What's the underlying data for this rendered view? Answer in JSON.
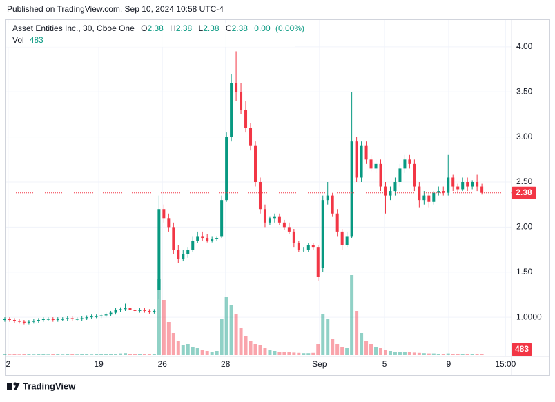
{
  "header": {
    "published": "Published on TradingView.com, Sep 10, 2024 10:58 UTC-4"
  },
  "footer": {
    "brand": "TradingView"
  },
  "chart_data": {
    "type": "candlestick",
    "title": "Asset Entities Inc., 30, Cboe One",
    "ohlc_legend": {
      "labels": {
        "open": "O",
        "high": "H",
        "low": "L",
        "close": "C"
      },
      "open": 2.38,
      "high": 2.38,
      "low": 2.38,
      "close": 2.38,
      "change": {
        "value": 0,
        "label": "0.00"
      },
      "change_percent": {
        "value": 0,
        "label": "(0.00%)"
      }
    },
    "volume_label": "Vol",
    "up_color": "#089981",
    "down_color": "#f23645",
    "grid": true,
    "xlim": [
      -1,
      105
    ],
    "ylim": [
      0.58,
      4.29
    ],
    "volume_lim": [
      0,
      35000
    ],
    "xticks": [
      {
        "value": 0.7,
        "label": "2"
      },
      {
        "value": 19.5,
        "label": "19"
      },
      {
        "value": 32.7,
        "label": "26"
      },
      {
        "value": 45.8,
        "label": "28"
      },
      {
        "value": 65.3,
        "label": "Sep"
      },
      {
        "value": 78.8,
        "label": "5"
      },
      {
        "value": 92.1,
        "label": "9"
      },
      {
        "value": 103.9,
        "label": "15:00"
      }
    ],
    "yticks": [
      {
        "value": 1,
        "label": "1.0000"
      },
      {
        "value": 1.5,
        "label": "1.50"
      },
      {
        "value": 2,
        "label": "2.00"
      },
      {
        "value": 2.5,
        "label": "2.50"
      },
      {
        "value": 3,
        "label": "3.00"
      },
      {
        "value": 3.5,
        "label": "3.50"
      },
      {
        "value": 4,
        "label": "4.00"
      }
    ],
    "open": [
      0.97,
      0.98,
      0.97,
      0.96,
      0.95,
      0.94,
      0.95,
      0.96,
      0.97,
      0.98,
      0.98,
      0.97,
      0.98,
      0.98,
      0.99,
      0.98,
      0.98,
      0.99,
      1.0,
      1.01,
      1.01,
      1.02,
      1.03,
      1.05,
      1.08,
      1.09,
      1.1,
      1.08,
      1.07,
      1.08,
      1.07,
      1.06,
      1.3,
      2.2,
      2.1,
      2.0,
      1.75,
      1.65,
      1.7,
      1.75,
      1.85,
      1.9,
      1.88,
      1.85,
      1.87,
      1.9,
      2.3,
      3.0,
      3.6,
      3.5,
      3.3,
      3.1,
      2.9,
      2.5,
      2.2,
      2.05,
      2.1,
      2.12,
      2.05,
      2.0,
      1.95,
      1.82,
      1.75,
      1.75,
      1.8,
      1.78,
      1.55,
      2.3,
      2.35,
      2.15,
      1.95,
      1.8,
      1.9,
      2.95,
      2.55,
      2.9,
      2.75,
      2.65,
      2.7,
      2.45,
      2.35,
      2.4,
      2.5,
      2.65,
      2.75,
      2.7,
      2.45,
      2.3,
      2.35,
      2.28,
      2.38,
      2.4,
      2.38,
      2.55,
      2.45,
      2.42,
      2.5,
      2.45,
      2.5,
      2.45
    ],
    "high": [
      1.0,
      1.0,
      0.99,
      0.98,
      0.97,
      0.97,
      0.98,
      0.99,
      1.0,
      1.0,
      1.0,
      1.0,
      1.0,
      1.01,
      1.01,
      1.0,
      1.01,
      1.02,
      1.03,
      1.03,
      1.04,
      1.05,
      1.07,
      1.1,
      1.11,
      1.15,
      1.12,
      1.1,
      1.1,
      1.1,
      1.09,
      1.09,
      2.35,
      2.25,
      2.15,
      2.05,
      1.8,
      1.75,
      1.78,
      1.9,
      1.95,
      1.95,
      1.92,
      1.9,
      1.9,
      2.35,
      3.05,
      3.7,
      3.95,
      3.6,
      3.4,
      3.15,
      2.95,
      2.55,
      2.25,
      2.12,
      2.15,
      2.15,
      2.08,
      2.05,
      1.98,
      1.85,
      1.78,
      1.82,
      1.82,
      1.8,
      2.35,
      2.5,
      2.38,
      2.2,
      1.98,
      1.95,
      3.5,
      3.0,
      2.95,
      2.95,
      2.8,
      2.75,
      2.75,
      2.5,
      2.45,
      2.55,
      2.7,
      2.8,
      2.8,
      2.75,
      2.5,
      2.4,
      2.38,
      2.4,
      2.45,
      2.45,
      2.8,
      2.58,
      2.48,
      2.55,
      2.55,
      2.52,
      2.58,
      2.48
    ],
    "low": [
      0.95,
      0.95,
      0.94,
      0.93,
      0.92,
      0.92,
      0.93,
      0.94,
      0.95,
      0.96,
      0.95,
      0.95,
      0.96,
      0.96,
      0.96,
      0.96,
      0.96,
      0.97,
      0.98,
      0.99,
      0.99,
      1.0,
      1.01,
      1.03,
      1.06,
      1.07,
      1.06,
      1.05,
      1.05,
      1.05,
      1.04,
      1.04,
      1.2,
      2.05,
      1.95,
      1.7,
      1.6,
      1.62,
      1.66,
      1.72,
      1.82,
      1.85,
      1.83,
      1.83,
      1.85,
      1.88,
      2.28,
      2.95,
      3.4,
      3.25,
      3.05,
      2.85,
      2.45,
      2.15,
      2.0,
      2.02,
      2.05,
      2.02,
      1.97,
      1.92,
      1.78,
      1.72,
      1.72,
      1.72,
      1.75,
      1.4,
      1.5,
      2.25,
      2.12,
      1.9,
      1.75,
      1.78,
      1.88,
      2.5,
      2.5,
      2.7,
      2.62,
      2.6,
      2.4,
      2.15,
      2.3,
      2.35,
      2.45,
      2.6,
      2.65,
      2.4,
      2.22,
      2.25,
      2.22,
      2.25,
      2.35,
      2.35,
      2.35,
      2.4,
      2.38,
      2.4,
      2.4,
      2.42,
      2.4,
      2.36
    ],
    "close": [
      0.98,
      0.97,
      0.96,
      0.95,
      0.94,
      0.95,
      0.96,
      0.97,
      0.98,
      0.98,
      0.97,
      0.98,
      0.98,
      0.99,
      0.98,
      0.98,
      0.99,
      1.0,
      1.01,
      1.01,
      1.02,
      1.03,
      1.05,
      1.08,
      1.09,
      1.1,
      1.08,
      1.07,
      1.08,
      1.07,
      1.06,
      1.07,
      2.2,
      2.1,
      2.0,
      1.75,
      1.65,
      1.7,
      1.75,
      1.85,
      1.9,
      1.88,
      1.85,
      1.87,
      1.88,
      2.3,
      3.0,
      3.6,
      3.5,
      3.3,
      3.1,
      2.9,
      2.5,
      2.2,
      2.05,
      2.1,
      2.12,
      2.05,
      2.0,
      1.95,
      1.82,
      1.75,
      1.75,
      1.8,
      1.78,
      1.45,
      2.3,
      2.35,
      2.15,
      1.95,
      1.8,
      1.9,
      2.95,
      2.55,
      2.9,
      2.75,
      2.65,
      2.7,
      2.45,
      2.35,
      2.4,
      2.5,
      2.65,
      2.75,
      2.7,
      2.45,
      2.3,
      2.35,
      2.28,
      2.38,
      2.4,
      2.38,
      2.55,
      2.45,
      2.42,
      2.5,
      2.45,
      2.5,
      2.45,
      2.38
    ],
    "volume": [
      300,
      200,
      250,
      200,
      300,
      250,
      200,
      300,
      250,
      200,
      300,
      250,
      200,
      300,
      250,
      200,
      300,
      250,
      200,
      300,
      250,
      300,
      400,
      500,
      600,
      700,
      400,
      300,
      350,
      300,
      300,
      400,
      27500,
      20000,
      12000,
      8000,
      5000,
      3500,
      4000,
      3000,
      2500,
      2000,
      1500,
      1200,
      1500,
      13000,
      21000,
      18000,
      15000,
      10000,
      7000,
      5000,
      4000,
      3500,
      2500,
      2000,
      1500,
      1200,
      1000,
      1000,
      900,
      800,
      700,
      700,
      800,
      4000,
      15000,
      13000,
      6000,
      4000,
      3000,
      2500,
      29000,
      16000,
      8000,
      5000,
      4000,
      3000,
      2500,
      2000,
      1500,
      1200,
      1000,
      1200,
      1000,
      900,
      800,
      700,
      600,
      600,
      500,
      500,
      600,
      500,
      500,
      500,
      500,
      500,
      500,
      483
    ]
  }
}
